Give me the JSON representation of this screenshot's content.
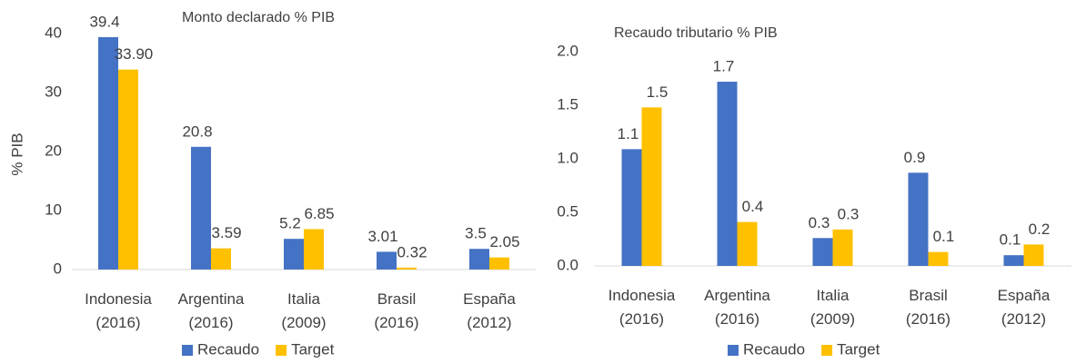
{
  "chart_data": [
    {
      "type": "bar",
      "title": "Monto declarado % PIB",
      "y_label": "% PIB",
      "categories": [
        "Indonesia (2016)",
        "Argentina (2016)",
        "Italia (2009)",
        "Brasil (2016)",
        "España (2012)"
      ],
      "series": [
        {
          "name": "Recaudo",
          "color": "#4472c4",
          "values": [
            39.4,
            20.8,
            5.2,
            3.01,
            3.5
          ],
          "value_labels": [
            "39.4",
            "20.8",
            "5.2",
            "3.01",
            "3.5"
          ]
        },
        {
          "name": "Target",
          "color": "#ffc000",
          "values": [
            33.9,
            3.59,
            6.85,
            0.32,
            2.05
          ],
          "value_labels": [
            "33.90",
            "3.59",
            "6.85",
            "0.32",
            "2.05"
          ]
        }
      ],
      "ylim": [
        0,
        40
      ],
      "yticks": [
        0,
        10,
        20,
        30,
        40
      ],
      "grid": false,
      "legend": "bottom"
    },
    {
      "type": "bar",
      "title": "Recaudo tributario % PIB",
      "categories": [
        "Indonesia (2016)",
        "Argentina (2016)",
        "Italia (2009)",
        "Brasil (2016)",
        "España (2012)"
      ],
      "series": [
        {
          "name": "Recaudo",
          "color": "#4472c4",
          "values": [
            1.09,
            1.72,
            0.26,
            0.87,
            0.1
          ],
          "value_labels": [
            "1.1",
            "1.7",
            "0.3",
            "0.9",
            "0.1"
          ]
        },
        {
          "name": "Target",
          "color": "#ffc000",
          "values": [
            1.48,
            0.41,
            0.34,
            0.13,
            0.2
          ],
          "value_labels": [
            "1.5",
            "0.4",
            "0.3",
            "0.1",
            "0.2"
          ]
        }
      ],
      "ylim": [
        0,
        2.0
      ],
      "yticks": [
        {
          "value": 0,
          "label": "0.0"
        },
        {
          "value": 0.5,
          "label": "0.5"
        },
        {
          "value": 1.0,
          "label": "1.0"
        },
        {
          "value": 1.5,
          "label": "1.5"
        },
        {
          "value": 2.0,
          "label": "2.0"
        }
      ],
      "grid": false,
      "legend": "bottom"
    }
  ]
}
